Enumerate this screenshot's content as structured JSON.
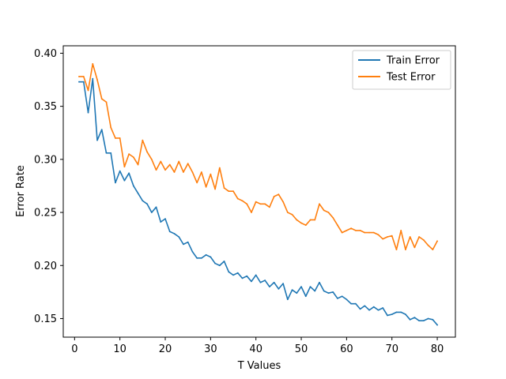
{
  "chart_data": {
    "type": "line",
    "title": "",
    "xlabel": "T Values",
    "ylabel": "Error Rate",
    "xlim": [
      -2.5,
      84
    ],
    "ylim": [
      0.1325,
      0.407
    ],
    "xticks": [
      0,
      10,
      20,
      30,
      40,
      50,
      60,
      70,
      80
    ],
    "xtick_labels": [
      "0",
      "10",
      "20",
      "30",
      "40",
      "50",
      "60",
      "70",
      "80"
    ],
    "yticks": [
      0.15,
      0.2,
      0.25,
      0.3,
      0.35,
      0.4
    ],
    "ytick_labels": [
      "0.15",
      "0.20",
      "0.25",
      "0.30",
      "0.35",
      "0.40"
    ],
    "grid": false,
    "legend_position": "top-right",
    "x": [
      1,
      2,
      3,
      4,
      5,
      6,
      7,
      8,
      9,
      10,
      11,
      12,
      13,
      14,
      15,
      16,
      17,
      18,
      19,
      20,
      21,
      22,
      23,
      24,
      25,
      26,
      27,
      28,
      29,
      30,
      31,
      32,
      33,
      34,
      35,
      36,
      37,
      38,
      39,
      40,
      41,
      42,
      43,
      44,
      45,
      46,
      47,
      48,
      49,
      50,
      51,
      52,
      53,
      54,
      55,
      56,
      57,
      58,
      59,
      60,
      61,
      62,
      63,
      64,
      65,
      66,
      67,
      68,
      69,
      70,
      71,
      72,
      73,
      74,
      75,
      76,
      77,
      78,
      79,
      80
    ],
    "series": [
      {
        "name": "Train Error",
        "color": "#1f77b4",
        "values": [
          0.373,
          0.373,
          0.344,
          0.376,
          0.318,
          0.328,
          0.306,
          0.306,
          0.278,
          0.289,
          0.28,
          0.287,
          0.275,
          0.268,
          0.261,
          0.258,
          0.25,
          0.255,
          0.241,
          0.244,
          0.232,
          0.23,
          0.227,
          0.22,
          0.222,
          0.213,
          0.207,
          0.207,
          0.21,
          0.208,
          0.202,
          0.2,
          0.204,
          0.194,
          0.191,
          0.193,
          0.188,
          0.19,
          0.185,
          0.191,
          0.184,
          0.186,
          0.18,
          0.184,
          0.178,
          0.183,
          0.168,
          0.177,
          0.174,
          0.18,
          0.171,
          0.18,
          0.176,
          0.184,
          0.176,
          0.174,
          0.175,
          0.169,
          0.171,
          0.168,
          0.164,
          0.164,
          0.159,
          0.162,
          0.158,
          0.161,
          0.158,
          0.16,
          0.153,
          0.154,
          0.156,
          0.156,
          0.154,
          0.149,
          0.151,
          0.148,
          0.148,
          0.15,
          0.149,
          0.144
        ]
      },
      {
        "name": "Test Error",
        "color": "#ff7f0e",
        "values": [
          0.378,
          0.378,
          0.365,
          0.39,
          0.375,
          0.357,
          0.354,
          0.33,
          0.32,
          0.32,
          0.293,
          0.305,
          0.302,
          0.295,
          0.318,
          0.307,
          0.3,
          0.29,
          0.298,
          0.29,
          0.295,
          0.288,
          0.298,
          0.288,
          0.296,
          0.288,
          0.278,
          0.288,
          0.274,
          0.286,
          0.272,
          0.292,
          0.273,
          0.27,
          0.27,
          0.263,
          0.261,
          0.258,
          0.25,
          0.26,
          0.258,
          0.258,
          0.255,
          0.265,
          0.267,
          0.26,
          0.25,
          0.248,
          0.243,
          0.24,
          0.238,
          0.243,
          0.243,
          0.258,
          0.252,
          0.25,
          0.245,
          0.238,
          0.231,
          0.233,
          0.235,
          0.233,
          0.233,
          0.231,
          0.231,
          0.231,
          0.229,
          0.225,
          0.227,
          0.228,
          0.215,
          0.233,
          0.215,
          0.227,
          0.217,
          0.227,
          0.224,
          0.219,
          0.215,
          0.223
        ]
      }
    ]
  }
}
